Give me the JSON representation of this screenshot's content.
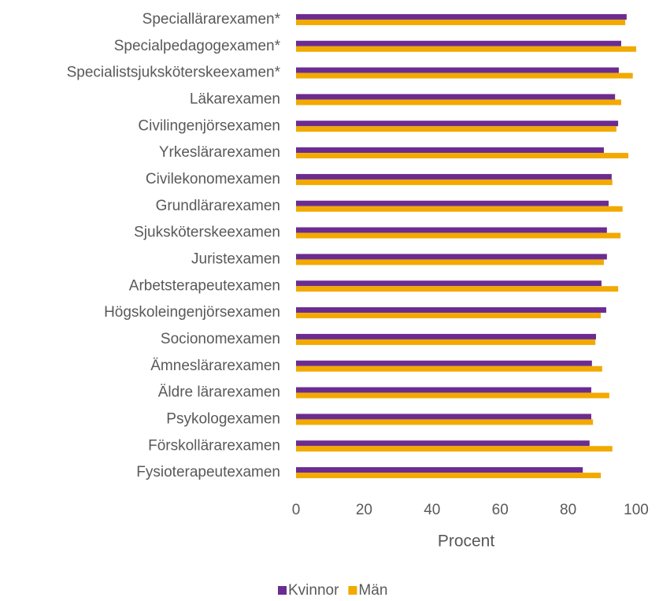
{
  "chart_data": {
    "type": "bar",
    "orientation": "horizontal",
    "categories": [
      "Speciallärarexamen*",
      "Specialpedagogexamen*",
      "Specialistsjuksköterskeexamen*",
      "Läkarexamen",
      "Civilingenjörsexamen",
      "Yrkeslärarexamen",
      "Civilekonomexamen",
      "Grundlärarexamen",
      "Sjuksköterskeexamen",
      "Juristexamen",
      "Arbetsterapeutexamen",
      "Högskoleingenjörsexamen",
      "Socionomexamen",
      "Ämneslärarexamen",
      "Äldre lärarexamen",
      "Psykologexamen",
      "Förskollärarexamen",
      "Fysioterapeutexamen"
    ],
    "series": [
      {
        "name": "Kvinnor",
        "color": "#6b2c91",
        "values": [
          97.2,
          95.6,
          94.9,
          93.8,
          94.7,
          90.5,
          92.8,
          91.9,
          91.4,
          91.4,
          89.8,
          91.2,
          88.2,
          87,
          86.8,
          86.8,
          86.3,
          84.3
        ]
      },
      {
        "name": "Män",
        "color": "#f2a900",
        "values": [
          96.8,
          100,
          99,
          95.6,
          94.2,
          97.7,
          93,
          96,
          95.4,
          90.5,
          94.7,
          89.6,
          88,
          90,
          92.1,
          87.3,
          93,
          89.6
        ]
      }
    ],
    "xlabel": "Procent",
    "xlim": [
      0,
      100
    ],
    "xticks": [
      0,
      20,
      40,
      60,
      80,
      100
    ],
    "legend": "bottom"
  }
}
